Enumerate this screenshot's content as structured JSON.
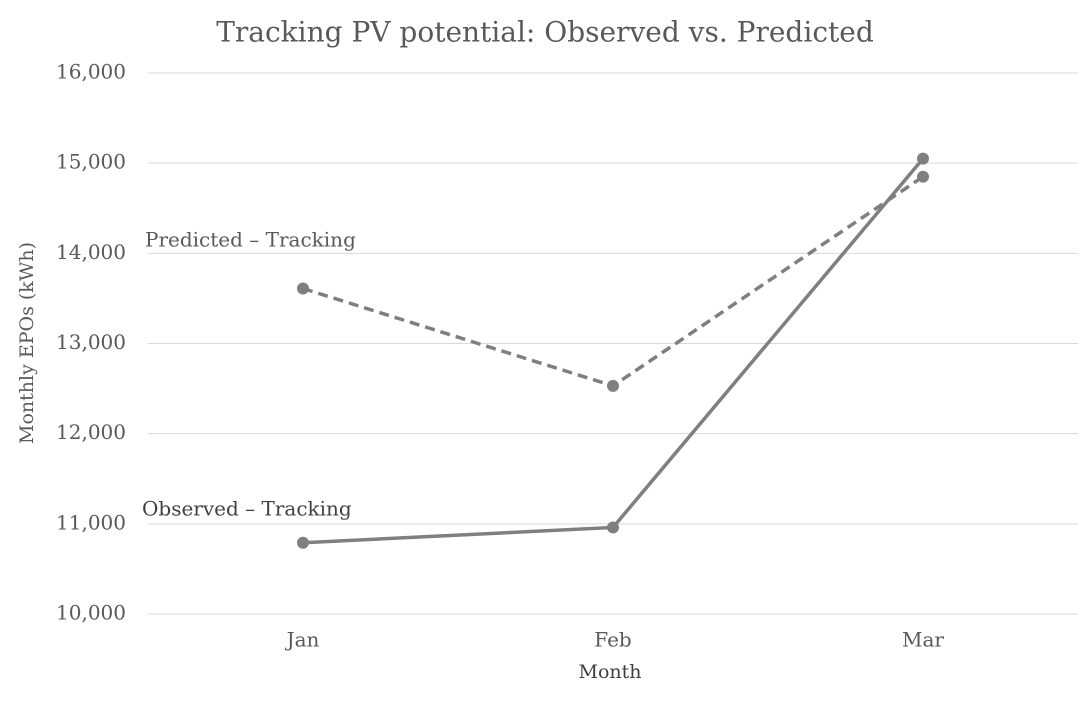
{
  "chart_data": {
    "type": "line",
    "title": "Tracking PV potential: Observed vs. Predicted",
    "x_label": "Month",
    "y_label": "Monthly EPOs (kWh)",
    "categories": [
      "Jan",
      "Feb",
      "Mar"
    ],
    "series": [
      {
        "name": "Predicted – Tracking",
        "color": "#7f7f7f",
        "style": "dashed",
        "values": [
          13610,
          12530,
          14850
        ]
      },
      {
        "name": "Observed – Tracking",
        "color": "#7f7f7f",
        "style": "solid",
        "values": [
          10790,
          10960,
          15050
        ]
      }
    ],
    "ylim": [
      10000,
      16000
    ],
    "yticks": [
      {
        "value": 10000,
        "label": "10,000"
      },
      {
        "value": 11000,
        "label": "11,000"
      },
      {
        "value": 12000,
        "label": "12,000"
      },
      {
        "value": 13000,
        "label": "13,000"
      },
      {
        "value": 14000,
        "label": "14,000"
      },
      {
        "value": 15000,
        "label": "15,000"
      },
      {
        "value": 16000,
        "label": "16,000"
      }
    ],
    "grid": true
  }
}
